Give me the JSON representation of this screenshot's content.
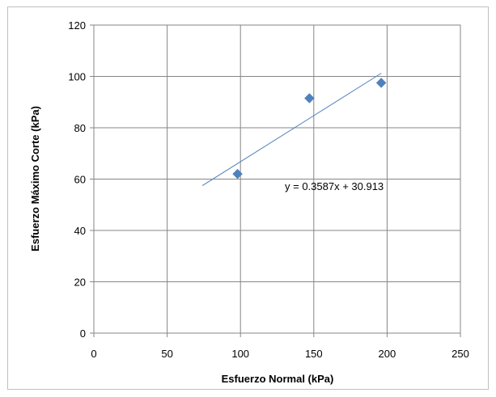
{
  "chart_data": {
    "type": "scatter",
    "xlabel": "Esfuerzo Normal (kPa)",
    "ylabel": "Esfuerzo Máximo Corte (kPa)",
    "xlim": [
      0,
      250
    ],
    "ylim": [
      0,
      120
    ],
    "x_ticks": [
      "0",
      "50",
      "100",
      "150",
      "200",
      "250"
    ],
    "y_ticks": [
      "0",
      "20",
      "40",
      "60",
      "80",
      "100",
      "120"
    ],
    "grid": true,
    "series": [
      {
        "x": [
          98,
          147,
          196
        ],
        "y": [
          62,
          91.5,
          97.5
        ],
        "marker": "diamond",
        "color": "#4f81bd"
      }
    ],
    "trendline": {
      "slope": 0.3587,
      "intercept": 30.913,
      "x_range": [
        74,
        196
      ],
      "color": "#4f81bd",
      "equation": "y = 0.3587x + 30.913"
    }
  }
}
